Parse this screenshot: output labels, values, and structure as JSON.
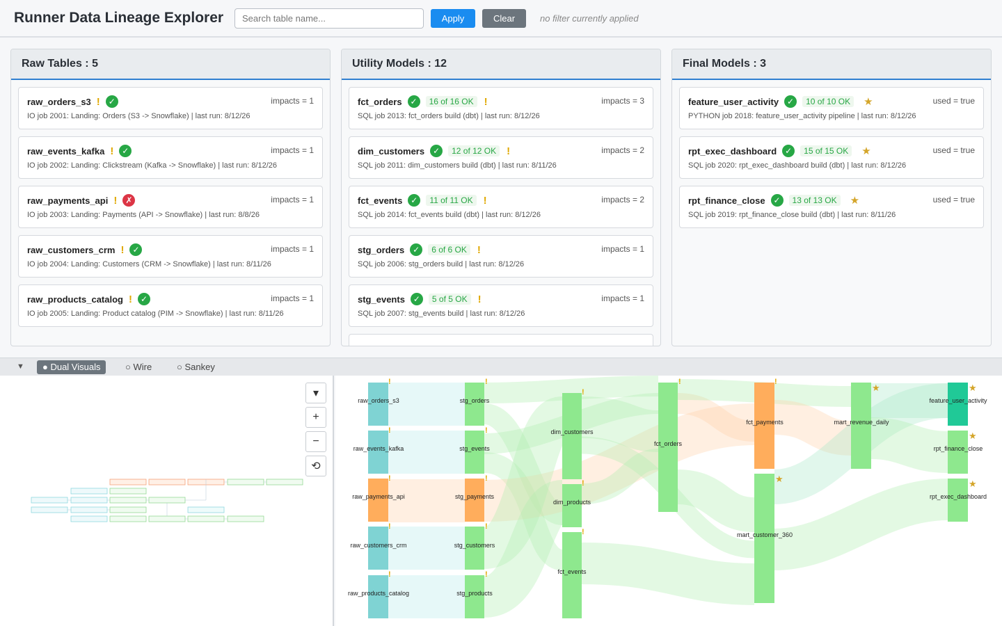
{
  "header": {
    "title": "Runner Data Lineage Explorer",
    "search_placeholder": "Search table name...",
    "apply_label": "Apply",
    "clear_label": "Clear",
    "filter_status": "no filter currently applied"
  },
  "columns": {
    "raw": {
      "title": "Raw Tables : 5",
      "cards": [
        {
          "name": "raw_orders_s3",
          "right": "impacts = 1",
          "desc": "IO job 2001: Landing: Orders (S3 -> Snowflake) | last run: 8/12/26"
        },
        {
          "name": "raw_events_kafka",
          "right": "impacts = 1",
          "desc": "IO job 2002: Landing: Clickstream (Kafka -> Snowflake) | last run: 8/12/26"
        },
        {
          "name": "raw_payments_api",
          "right": "impacts = 1",
          "desc": "IO job 2003: Landing: Payments (API -> Snowflake) | last run: 8/8/26"
        },
        {
          "name": "raw_customers_crm",
          "right": "impacts = 1",
          "desc": "IO job 2004: Landing: Customers (CRM -> Snowflake) | last run: 8/11/26"
        },
        {
          "name": "raw_products_catalog",
          "right": "impacts = 1",
          "desc": "IO job 2005: Landing: Product catalog (PIM -> Snowflake) | last run: 8/11/26"
        }
      ]
    },
    "utility": {
      "title": "Utility Models : 12",
      "cards": [
        {
          "name": "fct_orders",
          "tests": "16 of 16 OK",
          "right": "impacts = 3",
          "desc": "SQL job 2013: fct_orders build (dbt) | last run: 8/12/26"
        },
        {
          "name": "dim_customers",
          "tests": "12 of 12 OK",
          "right": "impacts = 2",
          "desc": "SQL job 2011: dim_customers build (dbt) | last run: 8/11/26"
        },
        {
          "name": "fct_events",
          "tests": "11 of 11 OK",
          "right": "impacts = 2",
          "desc": "SQL job 2014: fct_events build (dbt) | last run: 8/12/26"
        },
        {
          "name": "stg_orders",
          "tests": "6 of 6 OK",
          "right": "impacts = 1",
          "desc": "SQL job 2006: stg_orders build | last run: 8/12/26"
        },
        {
          "name": "stg_events",
          "tests": "5 of 5 OK",
          "right": "impacts = 1",
          "desc": "SQL job 2007: stg_events build | last run: 8/12/26"
        }
      ]
    },
    "final": {
      "title": "Final Models : 3",
      "cards": [
        {
          "name": "feature_user_activity",
          "tests": "10 of 10 OK",
          "right": "used = true",
          "desc": "PYTHON job 2018: feature_user_activity pipeline | last run: 8/12/26"
        },
        {
          "name": "rpt_exec_dashboard",
          "tests": "15 of 15 OK",
          "right": "used = true",
          "desc": "SQL job 2020: rpt_exec_dashboard build (dbt) | last run: 8/12/26"
        },
        {
          "name": "rpt_finance_close",
          "tests": "13 of 13 OK",
          "right": "used = true",
          "desc": "SQL job 2019: rpt_finance_close build (dbt) | last run: 8/11/26"
        }
      ]
    }
  },
  "viz": {
    "toggle": "▼",
    "options": [
      "● Dual Visuals",
      "○ Wire",
      "○ Sankey"
    ],
    "controls": [
      "▾",
      "+",
      "−",
      "⟲"
    ]
  },
  "sankey_nodes": {
    "raw_orders_s3": "raw_orders_s3",
    "raw_events_kafka": "raw_events_kafka",
    "raw_payments_api": "raw_payments_api",
    "raw_customers_crm": "raw_customers_crm",
    "raw_products_catalog": "raw_products_catalog",
    "stg_orders": "stg_orders",
    "stg_events": "stg_events",
    "stg_payments": "stg_payments",
    "stg_customers": "stg_customers",
    "stg_products": "stg_products",
    "dim_customers": "dim_customers",
    "dim_products": "dim_products",
    "fct_events": "fct_events",
    "fct_orders": "fct_orders",
    "fct_payments": "fct_payments",
    "mart_customer_360": "mart_customer_360",
    "mart_revenue_daily": "mart_revenue_daily",
    "feature_user_activity": "feature_user_activity",
    "rpt_finance_close": "rpt_finance_close",
    "rpt_exec_dashboard": "rpt_exec_dashboard"
  },
  "colors": {
    "ok": "#27a745",
    "fail": "#dc3545",
    "warn": "#e0a800",
    "accent": "#1a8cf0",
    "raw_node": "#7fd3d3",
    "model_node": "#8ee88e",
    "failed_node": "#ffad5c",
    "final_node": "#20c997"
  }
}
